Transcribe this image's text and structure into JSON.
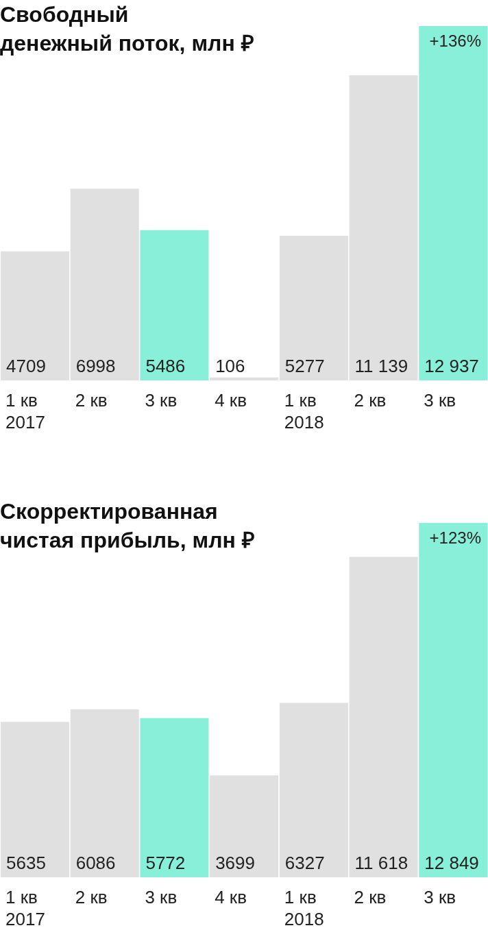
{
  "chart_data": [
    {
      "type": "bar",
      "title": "Свободный\nденежный поток, млн ₽",
      "categories": [
        "1 кв\n2017",
        "2 кв",
        "3 кв",
        "4 кв",
        "1 кв\n2018",
        "2 кв",
        "3 кв"
      ],
      "values": [
        4709,
        6998,
        5486,
        106,
        5277,
        11139,
        12937
      ],
      "value_labels": [
        "4709",
        "6998",
        "5486",
        "106",
        "5277",
        "11 139",
        "12 937"
      ],
      "colors": [
        "#e0e0e0",
        "#e0e0e0",
        "#88f0d8",
        "#e0e0e0",
        "#e0e0e0",
        "#e0e0e0",
        "#88f0d8"
      ],
      "annotations": [
        "+136%"
      ]
    },
    {
      "type": "bar",
      "title": "Скорректированная\nчистая прибыль, млн ₽",
      "categories": [
        "1 кв\n2017",
        "2 кв",
        "3 кв",
        "4 кв",
        "1 кв\n2018",
        "2 кв",
        "3 кв"
      ],
      "values": [
        5635,
        6086,
        5772,
        3699,
        6327,
        11618,
        12849
      ],
      "value_labels": [
        "5635",
        "6086",
        "5772",
        "3699",
        "6327",
        "11 618",
        "12 849"
      ],
      "colors": [
        "#e0e0e0",
        "#e0e0e0",
        "#88f0d8",
        "#e0e0e0",
        "#e0e0e0",
        "#e0e0e0",
        "#88f0d8"
      ],
      "annotations": [
        "+123%"
      ]
    }
  ]
}
